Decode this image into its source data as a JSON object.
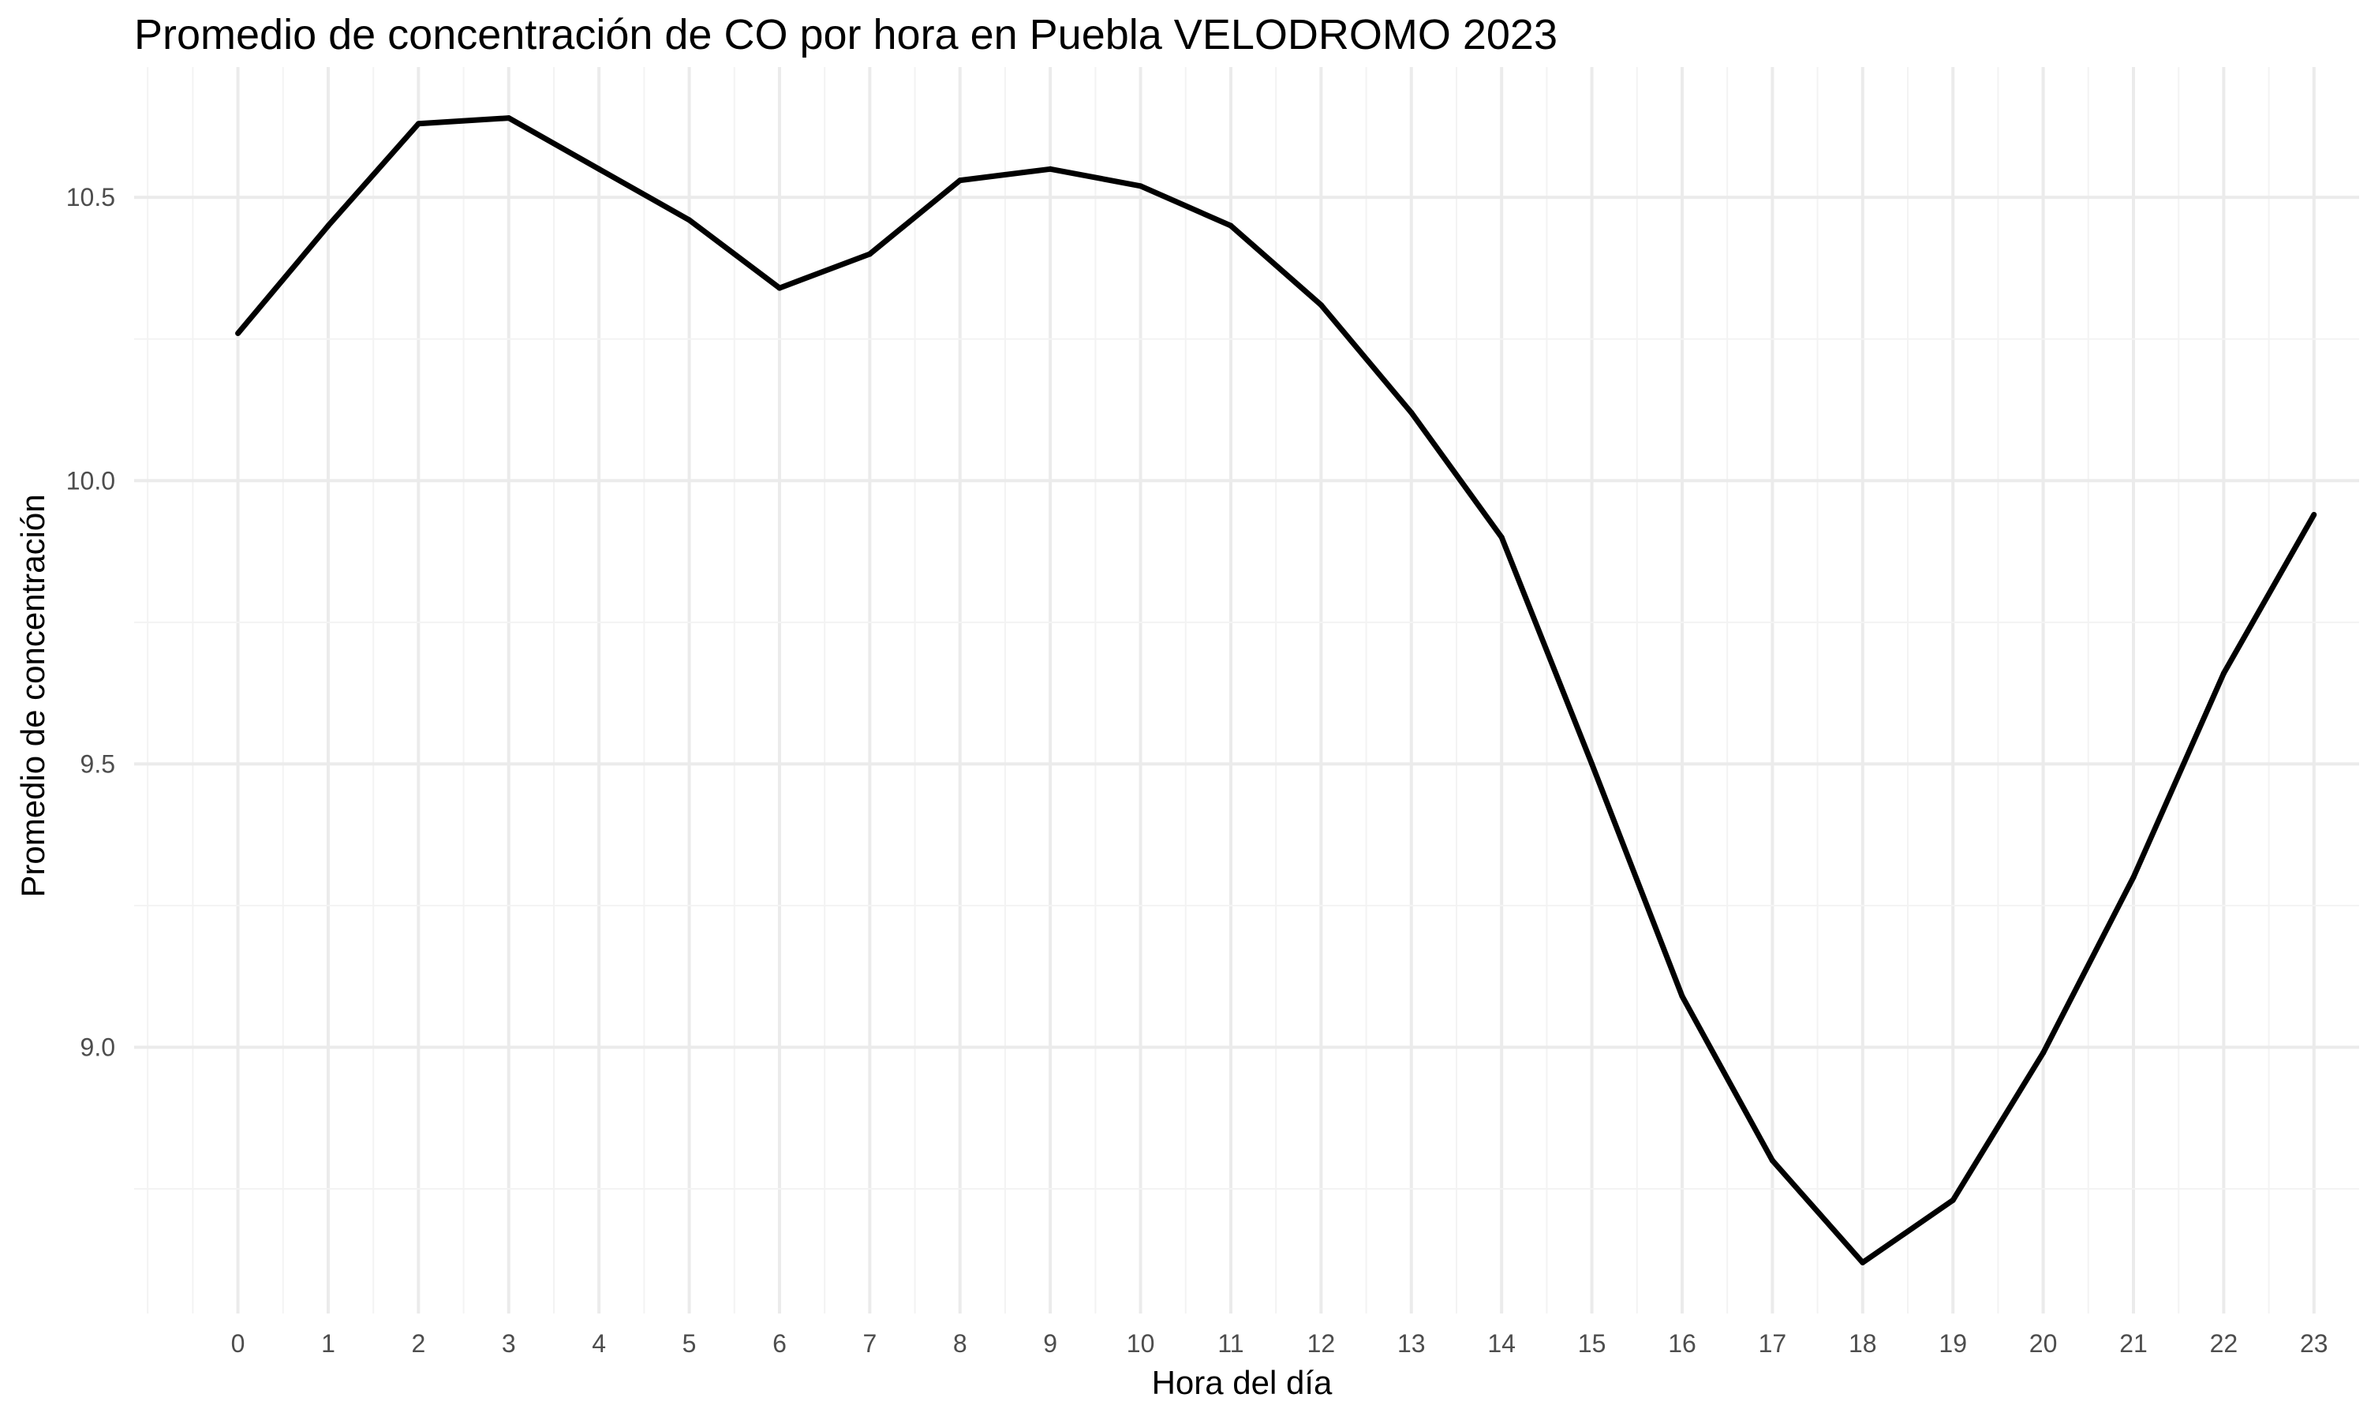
{
  "chart_data": {
    "type": "line",
    "title": "Promedio de concentración de CO por hora en Puebla VELODROMO 2023",
    "xlabel": "Hora del día",
    "ylabel": "Promedio de concentración",
    "x": [
      0,
      1,
      2,
      3,
      4,
      5,
      6,
      7,
      8,
      9,
      10,
      11,
      12,
      13,
      14,
      15,
      16,
      17,
      18,
      19,
      20,
      21,
      22,
      23
    ],
    "x_tick_labels": [
      "0",
      "1",
      "2",
      "3",
      "4",
      "5",
      "6",
      "7",
      "8",
      "9",
      "10",
      "11",
      "12",
      "13",
      "14",
      "15",
      "16",
      "17",
      "18",
      "19",
      "20",
      "21",
      "22",
      "23"
    ],
    "series": [
      {
        "values": [
          10.26,
          10.45,
          10.63,
          10.64,
          10.55,
          10.46,
          10.34,
          10.4,
          10.53,
          10.55,
          10.52,
          10.45,
          10.31,
          10.12,
          9.9,
          9.5,
          9.09,
          8.8,
          8.62,
          8.73,
          8.99,
          9.3,
          9.66,
          9.94
        ],
        "color": "#000000"
      }
    ],
    "y_ticks": [
      9.0,
      9.5,
      10.0,
      10.5
    ],
    "y_tick_labels": [
      "9.0",
      "9.5",
      "10.0",
      "10.5"
    ],
    "xlim": [
      -1.15,
      23.5
    ],
    "ylim": [
      8.53,
      10.73
    ],
    "grid": true,
    "legend": "none",
    "colors": {
      "line": "#000000",
      "grid_major": "#ebebeb",
      "grid_minor": "#f3f3f3",
      "tick_text": "#4d4d4d"
    }
  }
}
